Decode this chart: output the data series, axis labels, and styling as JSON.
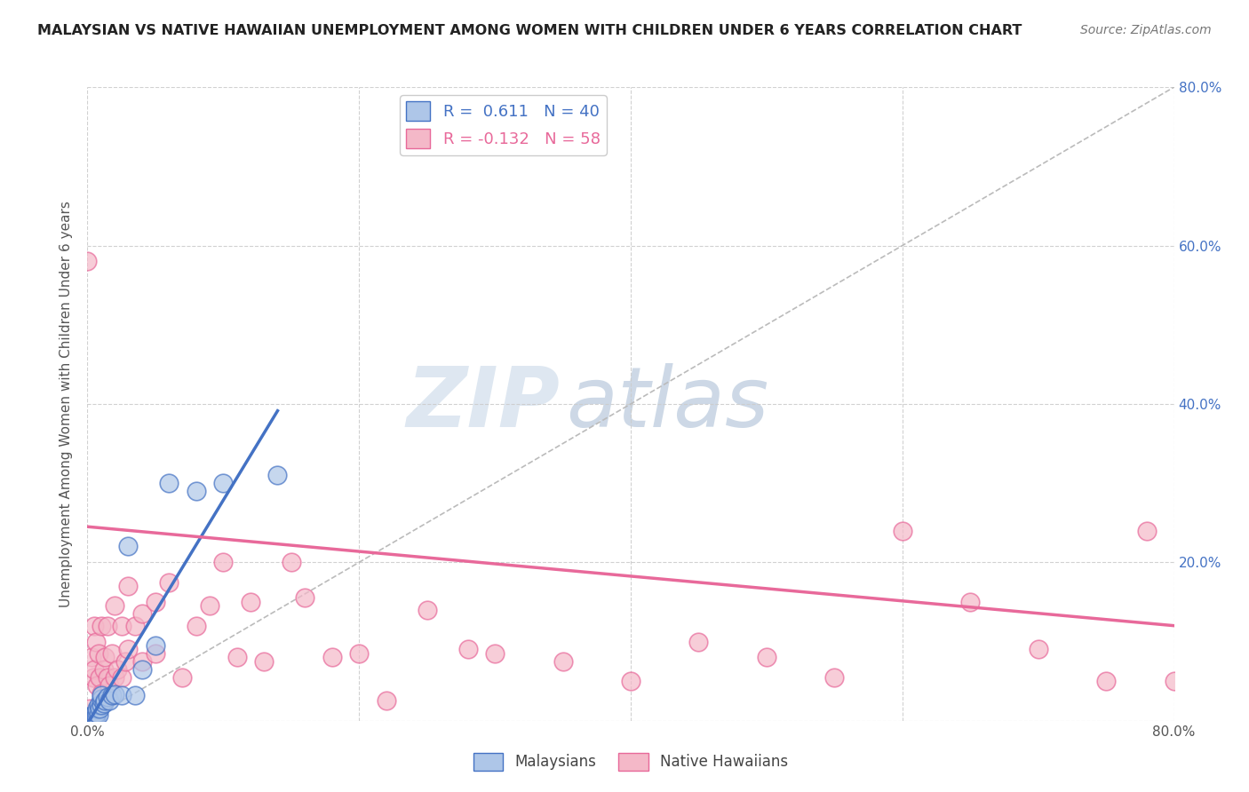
{
  "title": "MALAYSIAN VS NATIVE HAWAIIAN UNEMPLOYMENT AMONG WOMEN WITH CHILDREN UNDER 6 YEARS CORRELATION CHART",
  "source": "Source: ZipAtlas.com",
  "ylabel": "Unemployment Among Women with Children Under 6 years",
  "xlim": [
    0,
    0.8
  ],
  "ylim": [
    0,
    0.8
  ],
  "xticks": [
    0.0,
    0.2,
    0.4,
    0.6,
    0.8
  ],
  "xticklabels": [
    "0.0%",
    "",
    "",
    "",
    "80.0%"
  ],
  "right_yticks": [
    0.0,
    0.2,
    0.4,
    0.6,
    0.8
  ],
  "right_yticklabels": [
    "",
    "20.0%",
    "40.0%",
    "60.0%",
    "80.0%"
  ],
  "malaysian_color": "#aec6e8",
  "hawaiian_color": "#f4b8c8",
  "malaysian_line_color": "#4472c4",
  "hawaiian_line_color": "#e8699a",
  "legend_R_malaysian": "0.611",
  "legend_N_malaysian": "40",
  "legend_R_hawaiian": "-0.132",
  "legend_N_hawaiian": "58",
  "watermark_zip": "ZIP",
  "watermark_atlas": "atlas",
  "malaysian_x": [
    0.0,
    0.0,
    0.0,
    0.0,
    0.0,
    0.002,
    0.002,
    0.003,
    0.003,
    0.003,
    0.004,
    0.004,
    0.004,
    0.005,
    0.005,
    0.006,
    0.006,
    0.007,
    0.007,
    0.008,
    0.008,
    0.009,
    0.01,
    0.01,
    0.01,
    0.012,
    0.013,
    0.015,
    0.016,
    0.018,
    0.02,
    0.025,
    0.03,
    0.035,
    0.04,
    0.05,
    0.06,
    0.08,
    0.1,
    0.14
  ],
  "malaysian_y": [
    0.0,
    0.0,
    0.002,
    0.003,
    0.005,
    0.0,
    0.002,
    0.0,
    0.003,
    0.005,
    0.002,
    0.005,
    0.008,
    0.003,
    0.007,
    0.005,
    0.008,
    0.01,
    0.015,
    0.008,
    0.02,
    0.015,
    0.02,
    0.028,
    0.032,
    0.022,
    0.025,
    0.03,
    0.025,
    0.032,
    0.033,
    0.032,
    0.22,
    0.032,
    0.065,
    0.095,
    0.3,
    0.29,
    0.3,
    0.31
  ],
  "hawaiian_x": [
    0.0,
    0.002,
    0.003,
    0.004,
    0.005,
    0.005,
    0.006,
    0.007,
    0.008,
    0.009,
    0.01,
    0.01,
    0.012,
    0.013,
    0.015,
    0.015,
    0.016,
    0.018,
    0.02,
    0.02,
    0.022,
    0.025,
    0.025,
    0.028,
    0.03,
    0.03,
    0.035,
    0.04,
    0.04,
    0.05,
    0.05,
    0.06,
    0.07,
    0.08,
    0.09,
    0.1,
    0.11,
    0.12,
    0.13,
    0.15,
    0.16,
    0.18,
    0.2,
    0.22,
    0.25,
    0.28,
    0.3,
    0.35,
    0.4,
    0.45,
    0.5,
    0.55,
    0.6,
    0.65,
    0.7,
    0.75,
    0.78,
    0.8
  ],
  "hawaiian_y": [
    0.58,
    0.015,
    0.08,
    0.055,
    0.065,
    0.12,
    0.1,
    0.045,
    0.085,
    0.055,
    0.12,
    0.035,
    0.065,
    0.08,
    0.055,
    0.12,
    0.045,
    0.085,
    0.055,
    0.145,
    0.065,
    0.055,
    0.12,
    0.075,
    0.09,
    0.17,
    0.12,
    0.075,
    0.135,
    0.15,
    0.085,
    0.175,
    0.055,
    0.12,
    0.145,
    0.2,
    0.08,
    0.15,
    0.075,
    0.2,
    0.155,
    0.08,
    0.085,
    0.025,
    0.14,
    0.09,
    0.085,
    0.075,
    0.05,
    0.1,
    0.08,
    0.055,
    0.24,
    0.15,
    0.09,
    0.05,
    0.24,
    0.05
  ],
  "malaysian_trend_x": [
    0.0,
    0.14
  ],
  "malaysian_trend_y_start": 0.0,
  "hawaiian_trend_x": [
    0.0,
    0.8
  ],
  "hawaiian_trend_y_start": 0.245,
  "hawaiian_trend_y_end": 0.12
}
